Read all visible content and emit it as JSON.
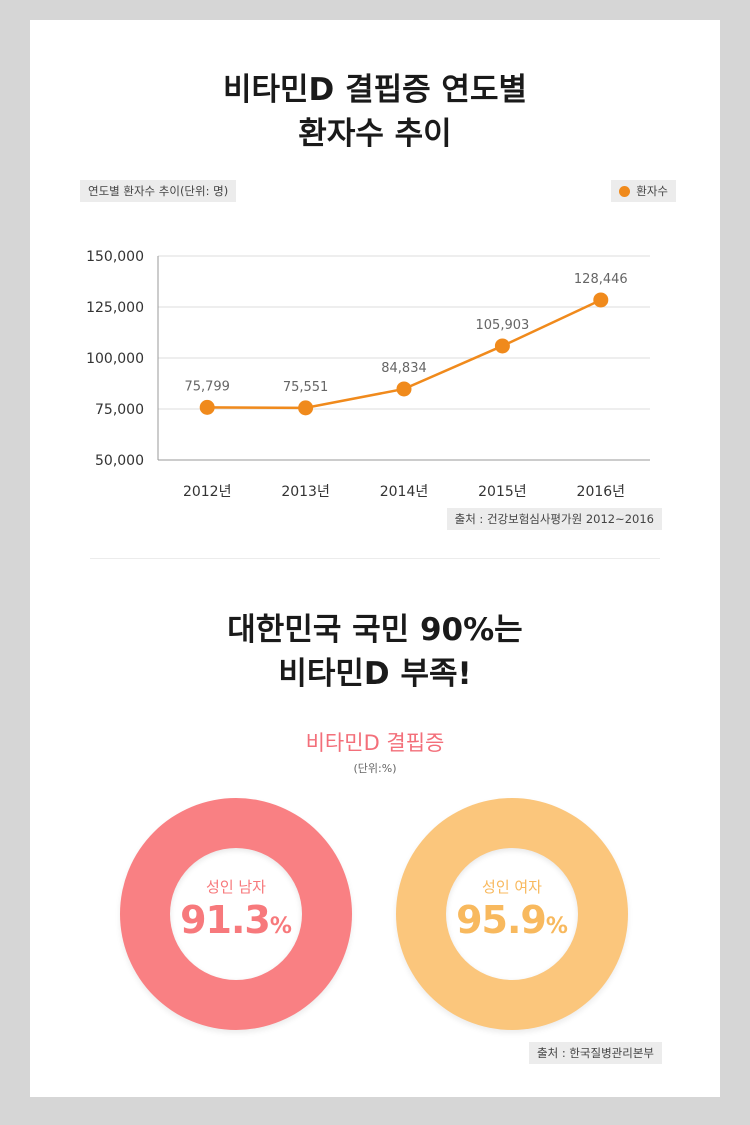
{
  "header": {
    "title_line1": "비타민D 결핍증 연도별",
    "title_line2": "환자수 추이"
  },
  "chart_data": [
    {
      "type": "line",
      "title": "비타민D 결핍증 연도별 환자수 추이",
      "unit_label": "연도별 환자수 추이(단위: 명)",
      "categories": [
        "2012년",
        "2013년",
        "2014년",
        "2015년",
        "2016년"
      ],
      "series": [
        {
          "name": "환자수",
          "values": [
            75799,
            75551,
            84834,
            105903,
            128446
          ],
          "labels": [
            "75,799",
            "75,551",
            "84,834",
            "105,903",
            "128,446"
          ],
          "color": "#f08a1c"
        }
      ],
      "ylim": [
        50000,
        150000
      ],
      "yticks": [
        150000,
        125000,
        100000,
        75000,
        50000
      ],
      "ytick_labels": [
        "150,000",
        "125,000",
        "100,000",
        "75,000",
        "50,000"
      ],
      "grid": true,
      "legend_position": "top-right",
      "source": "출처 : 건강보험심사평가원 2012~2016"
    },
    {
      "type": "pie",
      "title": "비타민D 결핍증",
      "unit_label": "(단위:%)",
      "categories": [
        "성인 남자",
        "성인 여자"
      ],
      "values": [
        91.3,
        95.9
      ],
      "value_labels": [
        "91.3",
        "95.9"
      ],
      "percent_sign": "%",
      "colors": [
        "#f98083",
        "#fbc67c"
      ],
      "source": "출처 : 한국질병관리본부"
    }
  ],
  "section2": {
    "title_line1": "대한민국 국민 90%는",
    "title_line2": "비타민D 부족!"
  }
}
